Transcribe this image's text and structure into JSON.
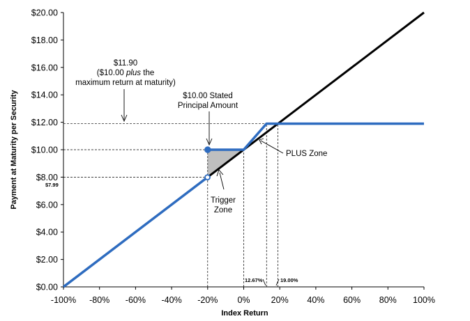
{
  "chart_data": {
    "type": "line",
    "xlabel": "Index Return",
    "ylabel": "Payment at Maturity per Security",
    "xlim": [
      -100,
      100
    ],
    "ylim": [
      0,
      20
    ],
    "x_ticks": [
      "-100%",
      "-80%",
      "-60%",
      "-40%",
      "-20%",
      "0%",
      "20%",
      "40%",
      "60%",
      "80%",
      "100%"
    ],
    "y_ticks": [
      "$0.00",
      "$2.00",
      "$4.00",
      "$6.00",
      "$8.00",
      "$10.00",
      "$12.00",
      "$14.00",
      "$16.00",
      "$18.00",
      "$20.00"
    ],
    "series": [
      {
        "color": "#000000",
        "points": [
          [
            -100,
            0
          ],
          [
            100,
            20
          ]
        ]
      },
      {
        "color": "#2e6cc0",
        "points": [
          [
            -100,
            0
          ],
          [
            -20.1,
            7.99
          ]
        ]
      },
      {
        "color": "#2e6cc0",
        "points": [
          [
            -20,
            10
          ],
          [
            0,
            10
          ],
          [
            12.67,
            11.9
          ],
          [
            100,
            11.9
          ]
        ]
      }
    ],
    "markers": {
      "open": [
        -20.1,
        7.99
      ],
      "filled": [
        -20,
        10
      ]
    },
    "reference_lines": {
      "horizontal": [
        11.9,
        10,
        7.99
      ],
      "vertical": [
        -20,
        0,
        12.67,
        19
      ]
    },
    "annotations": {
      "max_line1": "$11.90",
      "max_line2_pre": "($10.00 ",
      "max_line2_em": "plus",
      "max_line2_post": " the",
      "max_line3": "maximum return at maturity)",
      "stated_line1": "$10.00 Stated",
      "stated_line2": "Principal Amount",
      "trigger_line1": "Trigger",
      "trigger_line2": "Zone",
      "plus_zone": "PLUS Zone",
      "value_799": "$7.99",
      "pct_1267": "12.67%",
      "pct_1900": "19.00%"
    }
  }
}
